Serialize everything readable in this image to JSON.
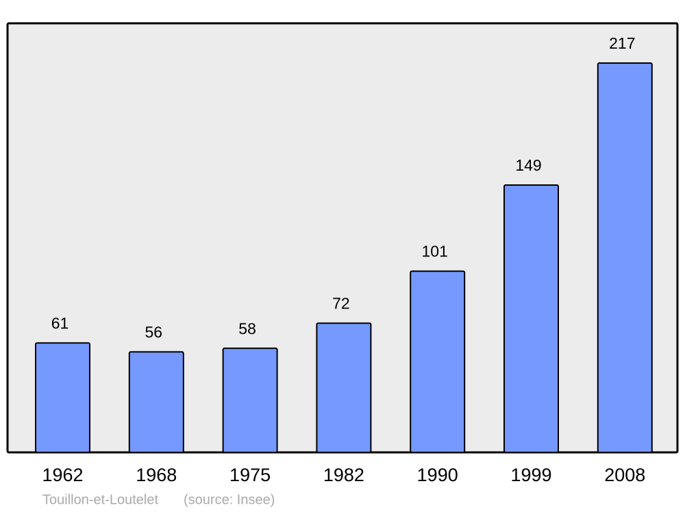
{
  "chart_data": {
    "type": "bar",
    "title": "Touillon-et-Loutelet",
    "source": "(source: Insee)",
    "categories": [
      "1962",
      "1968",
      "1975",
      "1982",
      "1990",
      "1999",
      "2008"
    ],
    "values": [
      61,
      56,
      58,
      72,
      101,
      149,
      217
    ],
    "color": "#7599ff"
  }
}
